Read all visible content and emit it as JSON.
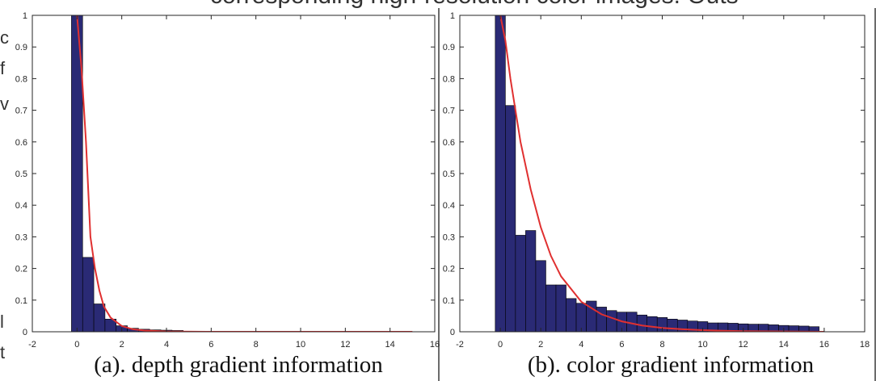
{
  "top_text": "corresponding high-resolution color images. Outs",
  "edge_fragments": [
    "c",
    "f",
    "v",
    "l",
    "t"
  ],
  "captions": {
    "a": "(a). depth gradient information",
    "b": "(b). color gradient information"
  },
  "colors": {
    "bar": "#2a2a75",
    "curve": "#e03030",
    "axis": "#262626"
  },
  "chart_data": [
    {
      "type": "bar",
      "title": "(a). depth gradient information",
      "xlim": [
        -2,
        16
      ],
      "ylim": [
        0,
        1
      ],
      "xticks": [
        -2,
        0,
        2,
        4,
        6,
        8,
        10,
        12,
        14,
        16
      ],
      "yticks": [
        0,
        0.1,
        0.2,
        0.3,
        0.4,
        0.5,
        0.6,
        0.7,
        0.8,
        0.9,
        1
      ],
      "bin_width": 0.5,
      "bin_centers": [
        0,
        0.5,
        1,
        1.5,
        2,
        2.5,
        3,
        3.5,
        4,
        4.5
      ],
      "values": [
        1.0,
        0.235,
        0.088,
        0.04,
        0.019,
        0.011,
        0.008,
        0.006,
        0.005,
        0.004
      ],
      "fit_curve": {
        "x": [
          0,
          0.2,
          0.4,
          0.6,
          0.8,
          1,
          1.2,
          1.5,
          2,
          2.5,
          3,
          4,
          6,
          8,
          10,
          12,
          14,
          15
        ],
        "y": [
          1.0,
          0.83,
          0.6,
          0.3,
          0.2,
          0.13,
          0.08,
          0.045,
          0.018,
          0.008,
          0.004,
          0.001,
          0.0,
          0.0,
          0.0,
          0.0,
          0.0,
          0.0
        ]
      }
    },
    {
      "type": "bar",
      "title": "(b). color gradient information",
      "xlim": [
        -2,
        18
      ],
      "ylim": [
        0,
        1
      ],
      "xticks": [
        -2,
        0,
        2,
        4,
        6,
        8,
        10,
        12,
        14,
        16,
        18
      ],
      "yticks": [
        0,
        0.1,
        0.2,
        0.3,
        0.4,
        0.5,
        0.6,
        0.7,
        0.8,
        0.9,
        1
      ],
      "bin_width": 0.5,
      "bin_centers": [
        0,
        0.5,
        1,
        1.5,
        2,
        2.5,
        3,
        3.5,
        4,
        4.5,
        5,
        5.5,
        6,
        6.5,
        7,
        7.5,
        8,
        8.5,
        9,
        9.5,
        10,
        10.5,
        11,
        11.5,
        12,
        12.5,
        13,
        13.5,
        14,
        14.5,
        15,
        15.5
      ],
      "values": [
        1.0,
        0.715,
        0.305,
        0.32,
        0.225,
        0.148,
        0.148,
        0.105,
        0.09,
        0.097,
        0.078,
        0.067,
        0.062,
        0.062,
        0.053,
        0.048,
        0.045,
        0.04,
        0.037,
        0.034,
        0.032,
        0.028,
        0.028,
        0.027,
        0.025,
        0.024,
        0.024,
        0.022,
        0.02,
        0.019,
        0.018,
        0.016
      ],
      "fit_curve": {
        "x": [
          0,
          0.25,
          0.5,
          1,
          1.5,
          2,
          2.5,
          3,
          4,
          5,
          6,
          7,
          8,
          9,
          10,
          11,
          12,
          14,
          16
        ],
        "y": [
          1.0,
          0.92,
          0.8,
          0.6,
          0.45,
          0.33,
          0.24,
          0.175,
          0.095,
          0.055,
          0.033,
          0.02,
          0.012,
          0.008,
          0.005,
          0.003,
          0.002,
          0.001,
          0.0
        ]
      }
    }
  ]
}
